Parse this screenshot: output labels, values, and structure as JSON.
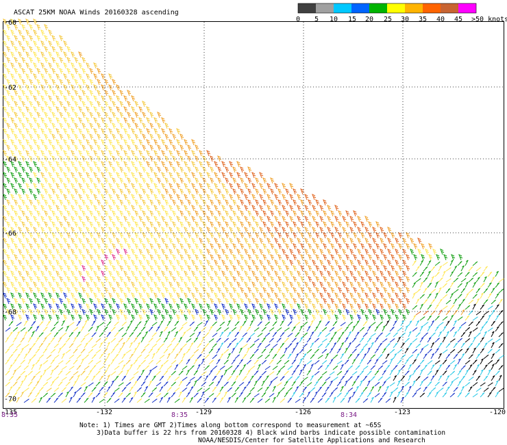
{
  "header": {
    "title": "ASCAT 25KM NOAA Winds 20160328 ascending"
  },
  "legend": {
    "labels": [
      "0",
      "5",
      "10",
      "15",
      "20",
      "25",
      "30",
      "35",
      "40",
      "45",
      ">50 knots"
    ],
    "colors": [
      "#404040",
      "#a0a0a0",
      "#00c8ff",
      "#0064ff",
      "#00b400",
      "#ffff00",
      "#ffb400",
      "#ff6400",
      "#c86432",
      "#ff00ff",
      "#7000c8"
    ]
  },
  "axes": {
    "lat_labels": [
      "-60",
      "-62",
      "-64",
      "-66",
      "-68",
      "-70"
    ],
    "lon_labels": [
      "-135",
      "-132",
      "-129",
      "-126",
      "-123",
      "-120"
    ],
    "time_labels": [
      "8:35",
      "8:35",
      "8:34"
    ]
  },
  "notes": {
    "line1": "Note: 1) Times are GMT 2)Times along bottom correspond to measurement at ~65S",
    "line2": "3)Data buffer is 22 hrs from 20160328 4) Black wind barbs indicate possible contamination",
    "line3": "NOAA/NESDIS/Center for Satellite Applications and Research"
  },
  "wind_palette": {
    "orange_dark": "#e0641e",
    "orange": "#f0a028",
    "gold": "#f5c83c",
    "yellow": "#ffe650",
    "green": "#14a014",
    "blue": "#1432c8",
    "cyan": "#28c8e6",
    "black": "#000000",
    "magenta": "#e0328c"
  }
}
